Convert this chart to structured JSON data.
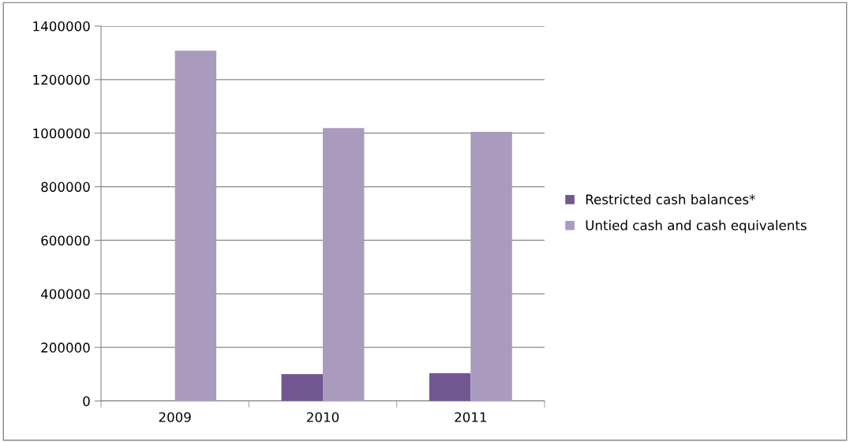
{
  "chart_data": {
    "type": "bar",
    "categories": [
      "2009",
      "2010",
      "2011"
    ],
    "series": [
      {
        "name": "Restricted cash balances*",
        "color": "#715893",
        "values": [
          0,
          100000,
          104000
        ]
      },
      {
        "name": "Untied cash and cash equivalents",
        "color": "#a99abe",
        "values": [
          1308000,
          1019000,
          1005000
        ]
      }
    ],
    "ylim": [
      0,
      1400000
    ],
    "yticks": [
      0,
      200000,
      400000,
      600000,
      800000,
      1000000,
      1200000,
      1400000
    ],
    "grid": "y",
    "legend": "right"
  }
}
